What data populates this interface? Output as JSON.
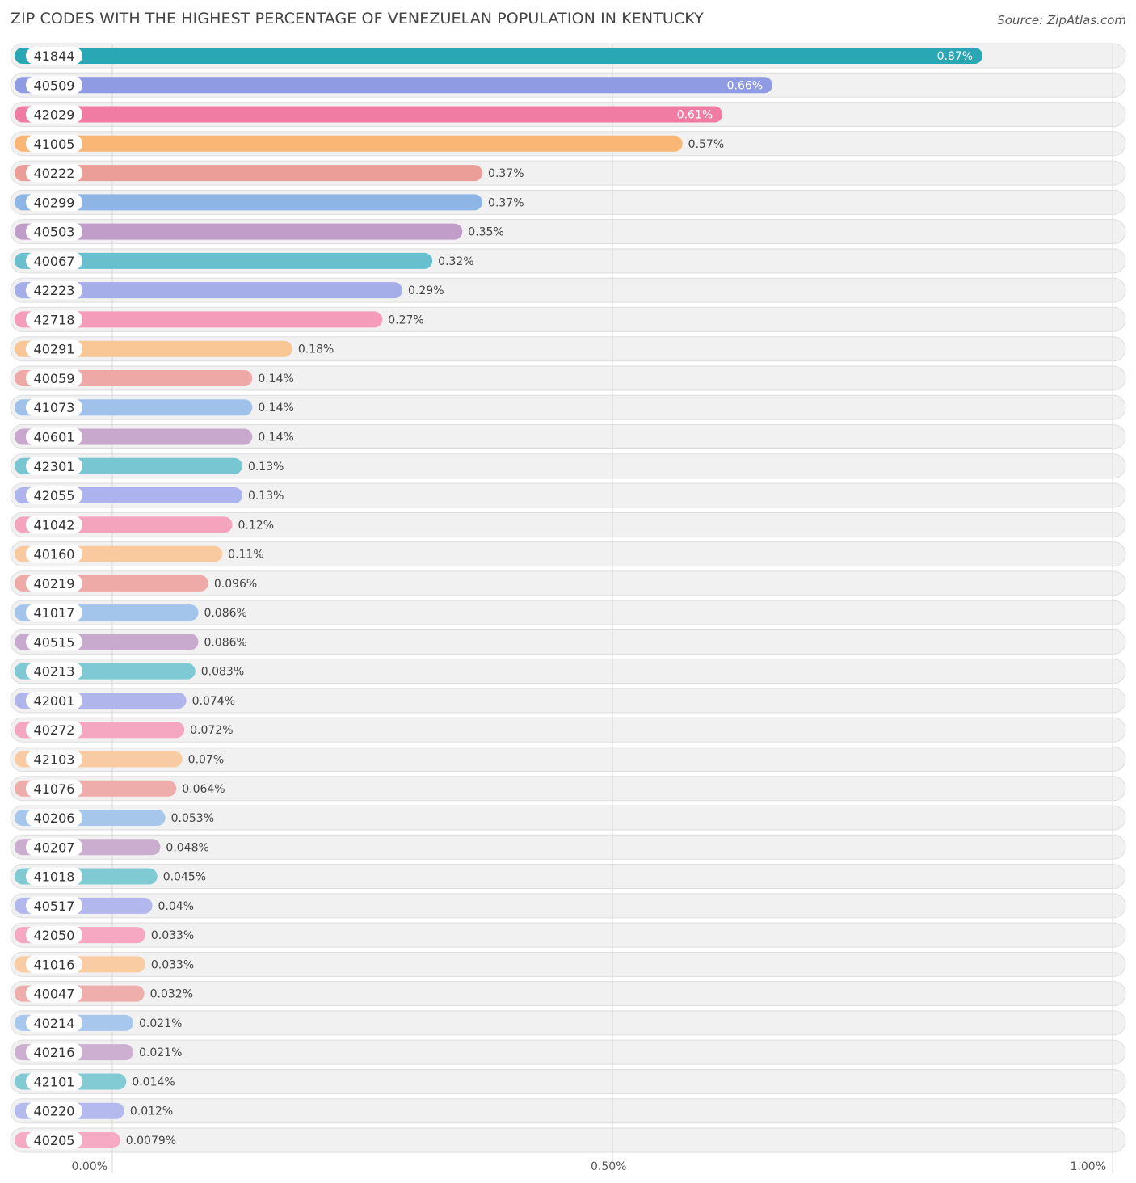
{
  "title": "ZIP CODES WITH THE HIGHEST PERCENTAGE OF VENEZUELAN POPULATION IN KENTUCKY",
  "source": "Source: ZipAtlas.com",
  "chart_data": {
    "type": "bar",
    "orientation": "horizontal",
    "xlim": [
      0,
      1.0
    ],
    "x_ticks": [
      "0.00%",
      "0.50%",
      "1.00%"
    ],
    "grid": true,
    "palette": [
      "#2aa7b5",
      "#8f9be3",
      "#f07ca3",
      "#f9b674",
      "#eb9e97",
      "#8db6e6",
      "#c19dc9",
      "#68c0cf",
      "#a6aee9",
      "#f49cba",
      "#f9c696",
      "#eea9a6",
      "#a0c2ea",
      "#c8a8cd",
      "#78c6d2",
      "#adb3ec",
      "#f5a4be",
      "#f9caa0",
      "#eeaaa6",
      "#a3c4eb",
      "#c9aacf",
      "#7ec9d4",
      "#b0b6ec",
      "#f5a6c0",
      "#f9cba2",
      "#eeacaa",
      "#a6c6eb",
      "#cbadd0",
      "#80cad4",
      "#b2b8ed",
      "#f6a8c2",
      "#f9cca4",
      "#efaeab",
      "#a8c7ec",
      "#ccafd1",
      "#82cbd5",
      "#b4baed",
      "#f6aac3"
    ],
    "categories": [
      "41844",
      "40509",
      "42029",
      "41005",
      "40222",
      "40299",
      "40503",
      "40067",
      "42223",
      "42718",
      "40291",
      "40059",
      "41073",
      "40601",
      "42301",
      "42055",
      "41042",
      "40160",
      "40219",
      "41017",
      "40515",
      "40213",
      "42001",
      "40272",
      "42103",
      "41076",
      "40206",
      "40207",
      "41018",
      "40517",
      "42050",
      "41016",
      "40047",
      "40214",
      "40216",
      "42101",
      "40220",
      "40205"
    ],
    "values": [
      0.87,
      0.66,
      0.61,
      0.57,
      0.37,
      0.37,
      0.35,
      0.32,
      0.29,
      0.27,
      0.18,
      0.14,
      0.14,
      0.14,
      0.13,
      0.13,
      0.12,
      0.11,
      0.096,
      0.086,
      0.086,
      0.083,
      0.074,
      0.072,
      0.07,
      0.064,
      0.053,
      0.048,
      0.045,
      0.04,
      0.033,
      0.033,
      0.032,
      0.021,
      0.021,
      0.014,
      0.012,
      0.0079
    ],
    "labels": [
      "0.87%",
      "0.66%",
      "0.61%",
      "0.57%",
      "0.37%",
      "0.37%",
      "0.35%",
      "0.32%",
      "0.29%",
      "0.27%",
      "0.18%",
      "0.14%",
      "0.14%",
      "0.14%",
      "0.13%",
      "0.13%",
      "0.12%",
      "0.11%",
      "0.096%",
      "0.086%",
      "0.086%",
      "0.083%",
      "0.074%",
      "0.072%",
      "0.07%",
      "0.064%",
      "0.053%",
      "0.048%",
      "0.045%",
      "0.04%",
      "0.033%",
      "0.033%",
      "0.032%",
      "0.021%",
      "0.021%",
      "0.014%",
      "0.012%",
      "0.0079%"
    ]
  }
}
